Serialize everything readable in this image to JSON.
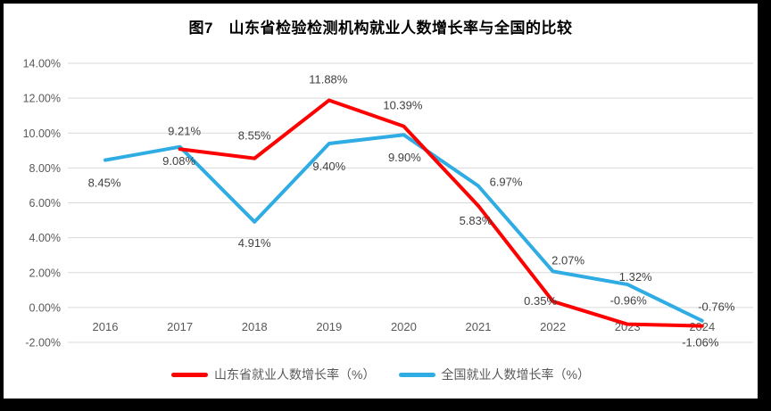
{
  "title": "图7　山东省检验检测机构就业人数增长率与全国的比较",
  "chart_data": {
    "type": "line",
    "title": "图7　山东省检验检测机构就业人数增长率与全国的比较",
    "categories": [
      "2016",
      "2017",
      "2018",
      "2019",
      "2020",
      "2021",
      "2022",
      "2023",
      "2024"
    ],
    "series": [
      {
        "name": "山东省就业人数增长率（%）",
        "color": "#fe0000",
        "values": [
          null,
          9.08,
          8.55,
          11.88,
          10.39,
          5.83,
          0.35,
          -0.96,
          -1.06
        ]
      },
      {
        "name": "全国就业人数增长率（%）",
        "color": "#2eace3",
        "values": [
          8.45,
          9.21,
          4.91,
          9.4,
          9.9,
          6.97,
          2.07,
          1.32,
          -0.76
        ]
      }
    ],
    "ylim": [
      -2,
      14
    ],
    "ytick_step": 2,
    "ytick_labels": [
      "-2.00%",
      "0.00%",
      "2.00%",
      "4.00%",
      "6.00%",
      "8.00%",
      "10.00%",
      "12.00%",
      "14.00%"
    ],
    "data_labels": true,
    "grid": "horizontal",
    "gridline_color": "#d9d9d9",
    "axis_label_color": "#595959",
    "data_label_color": "#404040",
    "legend_position": "bottom"
  }
}
